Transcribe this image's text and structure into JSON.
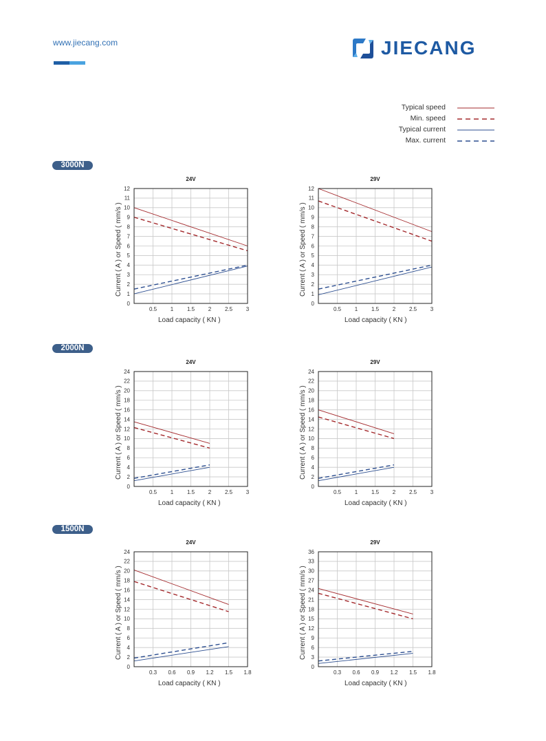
{
  "header": {
    "site_url": "www.jiecang.com",
    "logo_text": "JIECANG",
    "accent_colors": [
      "#1f5fa6",
      "#4aa3e0"
    ]
  },
  "legend": {
    "items": [
      {
        "label": "Typical speed",
        "color": "#a3282b",
        "style": "solid"
      },
      {
        "label": "Min. speed",
        "color": "#a3282b",
        "style": "dashed"
      },
      {
        "label": "Typical current",
        "color": "#2b4d8f",
        "style": "solid"
      },
      {
        "label": "Max. current",
        "color": "#2b4d8f",
        "style": "dashed"
      }
    ]
  },
  "sections": [
    {
      "badge": "3000N"
    },
    {
      "badge": "2000N"
    },
    {
      "badge": "1500N"
    }
  ],
  "chart_data": [
    {
      "type": "line",
      "title": "24V",
      "section": "3000N",
      "xlabel": "Load capacity ( KN )",
      "ylabel": "Current ( A ) or Speed ( mm/s )",
      "xlim": [
        0,
        3
      ],
      "ylim": [
        0,
        12
      ],
      "xticks": [
        0.5,
        1,
        1.5,
        2,
        2.5,
        3
      ],
      "yticks": [
        0,
        1,
        2,
        3,
        4,
        5,
        6,
        7,
        8,
        9,
        10,
        11,
        12
      ],
      "grid": true,
      "series": [
        {
          "name": "Typical speed",
          "x": [
            0,
            3
          ],
          "y": [
            10,
            6
          ]
        },
        {
          "name": "Min. speed",
          "x": [
            0,
            3
          ],
          "y": [
            9,
            5.5
          ]
        },
        {
          "name": "Typical current",
          "x": [
            0,
            3
          ],
          "y": [
            1,
            3.9
          ]
        },
        {
          "name": "Max. current",
          "x": [
            0,
            3
          ],
          "y": [
            1.5,
            4
          ]
        }
      ]
    },
    {
      "type": "line",
      "title": "29V",
      "section": "3000N",
      "xlabel": "Load capacity ( KN )",
      "ylabel": "Current ( A ) or Speed ( mm/s )",
      "xlim": [
        0,
        3
      ],
      "ylim": [
        0,
        12
      ],
      "xticks": [
        0.5,
        1,
        1.5,
        2,
        2.5,
        3
      ],
      "yticks": [
        0,
        1,
        2,
        3,
        4,
        5,
        6,
        7,
        8,
        9,
        10,
        11,
        12
      ],
      "grid": true,
      "series": [
        {
          "name": "Typical speed",
          "x": [
            0,
            3
          ],
          "y": [
            12,
            7.5
          ]
        },
        {
          "name": "Min. speed",
          "x": [
            0,
            3
          ],
          "y": [
            10.7,
            6.5
          ]
        },
        {
          "name": "Typical current",
          "x": [
            0,
            3
          ],
          "y": [
            0.9,
            3.8
          ]
        },
        {
          "name": "Max. current",
          "x": [
            0,
            3
          ],
          "y": [
            1.5,
            4
          ]
        }
      ]
    },
    {
      "type": "line",
      "title": "24V",
      "section": "2000N",
      "xlabel": "Load capacity ( KN )",
      "ylabel": "Current ( A ) or Speed ( mm/s )",
      "xlim": [
        0,
        3
      ],
      "ylim": [
        0,
        24
      ],
      "xticks": [
        0.5,
        1,
        1.5,
        2,
        2.5,
        3
      ],
      "yticks": [
        0,
        2,
        4,
        6,
        8,
        10,
        12,
        14,
        16,
        18,
        20,
        22,
        24
      ],
      "grid": true,
      "series": [
        {
          "name": "Typical speed",
          "x": [
            0,
            2
          ],
          "y": [
            13.5,
            9
          ]
        },
        {
          "name": "Min. speed",
          "x": [
            0,
            2
          ],
          "y": [
            12.3,
            8
          ]
        },
        {
          "name": "Typical current",
          "x": [
            0,
            2
          ],
          "y": [
            1.2,
            4
          ]
        },
        {
          "name": "Max. current",
          "x": [
            0,
            2
          ],
          "y": [
            1.7,
            4.5
          ]
        }
      ]
    },
    {
      "type": "line",
      "title": "29V",
      "section": "2000N",
      "xlabel": "Load capacity ( KN )",
      "ylabel": "Current ( A ) or Speed ( mm/s )",
      "xlim": [
        0,
        3
      ],
      "ylim": [
        0,
        24
      ],
      "xticks": [
        0.5,
        1,
        1.5,
        2,
        2.5,
        3
      ],
      "yticks": [
        0,
        2,
        4,
        6,
        8,
        10,
        12,
        14,
        16,
        18,
        20,
        22,
        24
      ],
      "grid": true,
      "series": [
        {
          "name": "Typical speed",
          "x": [
            0,
            2
          ],
          "y": [
            16,
            11
          ]
        },
        {
          "name": "Min. speed",
          "x": [
            0,
            2
          ],
          "y": [
            14.5,
            10
          ]
        },
        {
          "name": "Typical current",
          "x": [
            0,
            2
          ],
          "y": [
            1.2,
            4
          ]
        },
        {
          "name": "Max. current",
          "x": [
            0,
            2
          ],
          "y": [
            1.7,
            4.5
          ]
        }
      ]
    },
    {
      "type": "line",
      "title": "24V",
      "section": "1500N",
      "xlabel": "Load capacity ( KN )",
      "ylabel": "Current ( A ) or Speed ( mm/s )",
      "xlim": [
        0,
        1.8
      ],
      "ylim": [
        0,
        24
      ],
      "xticks": [
        0.3,
        0.6,
        0.9,
        1.2,
        1.5,
        1.8
      ],
      "yticks": [
        0,
        2,
        4,
        6,
        8,
        10,
        12,
        14,
        16,
        18,
        20,
        22,
        24
      ],
      "grid": true,
      "series": [
        {
          "name": "Typical speed",
          "x": [
            0,
            1.5
          ],
          "y": [
            20.2,
            13
          ]
        },
        {
          "name": "Min. speed",
          "x": [
            0,
            1.5
          ],
          "y": [
            17.8,
            11.5
          ]
        },
        {
          "name": "Typical current",
          "x": [
            0,
            1.5
          ],
          "y": [
            1.2,
            4.2
          ]
        },
        {
          "name": "Max. current",
          "x": [
            0,
            1.5
          ],
          "y": [
            1.8,
            5
          ]
        }
      ]
    },
    {
      "type": "line",
      "title": "29V",
      "section": "1500N",
      "xlabel": "Load capacity ( KN )",
      "ylabel": "Current ( A ) or Speed ( mm/s )",
      "xlim": [
        0,
        1.8
      ],
      "ylim": [
        0,
        36
      ],
      "xticks": [
        0.3,
        0.6,
        0.9,
        1.2,
        1.5,
        1.8
      ],
      "yticks": [
        0,
        3,
        6,
        9,
        12,
        15,
        18,
        21,
        24,
        27,
        30,
        33,
        36
      ],
      "grid": true,
      "series": [
        {
          "name": "Typical speed",
          "x": [
            0,
            1.5
          ],
          "y": [
            24.5,
            16.5
          ]
        },
        {
          "name": "Min. speed",
          "x": [
            0,
            1.5
          ],
          "y": [
            23,
            15
          ]
        },
        {
          "name": "Typical current",
          "x": [
            0,
            1.5
          ],
          "y": [
            1,
            4.2
          ]
        },
        {
          "name": "Max. current",
          "x": [
            0,
            1.5
          ],
          "y": [
            1.8,
            4.8
          ]
        }
      ]
    }
  ]
}
